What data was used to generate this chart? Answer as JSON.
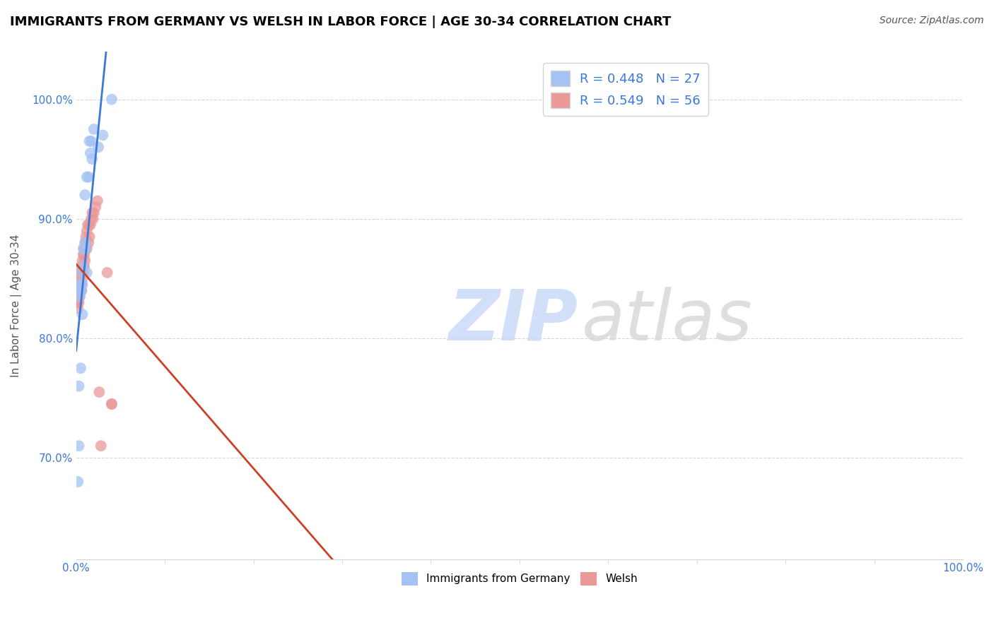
{
  "title": "IMMIGRANTS FROM GERMANY VS WELSH IN LABOR FORCE | AGE 30-34 CORRELATION CHART",
  "source_text": "Source: ZipAtlas.com",
  "ylabel": "In Labor Force | Age 30-34",
  "xlim": [
    0.0,
    1.0
  ],
  "ylim": [
    0.615,
    1.04
  ],
  "ytick_values": [
    0.7,
    0.8,
    0.9,
    1.0
  ],
  "germany_R": 0.448,
  "germany_N": 27,
  "welsh_R": 0.549,
  "welsh_N": 56,
  "germany_color": "#a4c2f4",
  "welsh_color": "#ea9999",
  "germany_line_color": "#3c78d8",
  "welsh_line_color": "#cc4125",
  "legend_label_germany": "Immigrants from Germany",
  "legend_label_welsh": "Welsh",
  "germany_x": [
    0.002,
    0.003,
    0.003,
    0.004,
    0.004,
    0.005,
    0.005,
    0.006,
    0.006,
    0.007,
    0.007,
    0.008,
    0.008,
    0.01,
    0.01,
    0.011,
    0.012,
    0.012,
    0.014,
    0.015,
    0.016,
    0.017,
    0.018,
    0.02,
    0.025,
    0.03,
    0.04
  ],
  "germany_y": [
    0.68,
    0.71,
    0.76,
    0.835,
    0.84,
    0.845,
    0.775,
    0.855,
    0.84,
    0.845,
    0.82,
    0.875,
    0.86,
    0.88,
    0.92,
    0.875,
    0.935,
    0.855,
    0.935,
    0.965,
    0.955,
    0.965,
    0.95,
    0.975,
    0.96,
    0.97,
    1.0
  ],
  "welsh_x": [
    0.001,
    0.001,
    0.001,
    0.001,
    0.001,
    0.002,
    0.002,
    0.002,
    0.002,
    0.003,
    0.003,
    0.003,
    0.003,
    0.004,
    0.004,
    0.004,
    0.004,
    0.005,
    0.005,
    0.005,
    0.006,
    0.006,
    0.006,
    0.006,
    0.007,
    0.007,
    0.007,
    0.008,
    0.008,
    0.008,
    0.009,
    0.009,
    0.009,
    0.01,
    0.01,
    0.01,
    0.011,
    0.011,
    0.012,
    0.012,
    0.013,
    0.014,
    0.015,
    0.015,
    0.016,
    0.017,
    0.018,
    0.019,
    0.02,
    0.022,
    0.024,
    0.026,
    0.028,
    0.035,
    0.04,
    0.04
  ],
  "welsh_y": [
    0.835,
    0.845,
    0.84,
    0.835,
    0.83,
    0.84,
    0.835,
    0.83,
    0.825,
    0.84,
    0.84,
    0.835,
    0.83,
    0.85,
    0.845,
    0.84,
    0.835,
    0.855,
    0.845,
    0.84,
    0.86,
    0.855,
    0.845,
    0.84,
    0.865,
    0.86,
    0.85,
    0.87,
    0.86,
    0.855,
    0.875,
    0.87,
    0.86,
    0.88,
    0.875,
    0.865,
    0.885,
    0.875,
    0.89,
    0.875,
    0.895,
    0.88,
    0.895,
    0.885,
    0.895,
    0.9,
    0.905,
    0.9,
    0.905,
    0.91,
    0.915,
    0.755,
    0.71,
    0.855,
    0.745,
    0.745
  ]
}
